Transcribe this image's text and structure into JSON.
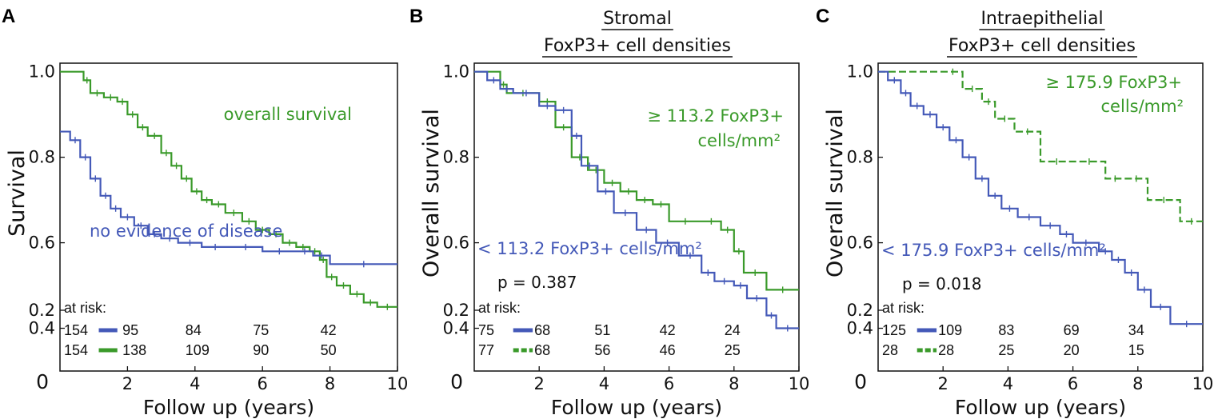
{
  "colors": {
    "blue": "#4459b8",
    "green": "#3a9a2a"
  },
  "chart_data": [
    {
      "type": "line",
      "panel_label": "A",
      "header": [],
      "ylabel": "Survival",
      "xlabel": "Follow up (years)",
      "y_origin_label": "0",
      "xlim": [
        0,
        10
      ],
      "ylim": [
        0.3,
        1.02
      ],
      "y_ticks": [
        "0.2",
        "0.4",
        "0.6",
        "0.8",
        "1.0"
      ],
      "x_ticks": [
        "2",
        "4",
        "6",
        "8",
        "10"
      ],
      "series": [
        {
          "name": "overall survival",
          "color": "green",
          "dashed": false,
          "x": [
            0,
            0.7,
            0.9,
            1.3,
            1.7,
            2.0,
            2.3,
            2.6,
            3.0,
            3.3,
            3.6,
            3.9,
            4.2,
            4.5,
            4.9,
            5.4,
            5.8,
            6.2,
            6.6,
            7.0,
            7.4,
            7.7,
            7.9,
            8.2,
            8.6,
            9.0,
            9.4,
            10
          ],
          "y": [
            1.0,
            0.98,
            0.95,
            0.94,
            0.93,
            0.9,
            0.87,
            0.85,
            0.81,
            0.78,
            0.75,
            0.72,
            0.7,
            0.69,
            0.67,
            0.65,
            0.63,
            0.62,
            0.6,
            0.59,
            0.58,
            0.56,
            0.52,
            0.5,
            0.48,
            0.46,
            0.45,
            0.45
          ]
        },
        {
          "name": "no evidence of disease",
          "color": "blue",
          "dashed": false,
          "x": [
            0,
            0.3,
            0.6,
            0.9,
            1.2,
            1.5,
            1.8,
            2.2,
            2.6,
            3.0,
            3.5,
            4.2,
            5.0,
            6.0,
            7.0,
            7.5,
            8.0,
            10
          ],
          "y": [
            0.86,
            0.84,
            0.8,
            0.75,
            0.71,
            0.68,
            0.66,
            0.64,
            0.62,
            0.61,
            0.6,
            0.59,
            0.59,
            0.58,
            0.58,
            0.57,
            0.55,
            0.55
          ]
        }
      ],
      "annotations": [
        {
          "text": "overall survival",
          "color": "green"
        },
        {
          "text": "no evidence of disease",
          "color": "blue"
        }
      ],
      "p_value": "",
      "at_risk_label": "at risk:",
      "at_risk": [
        {
          "color": "blue",
          "dashed": false,
          "n0": "154",
          "values": [
            "95",
            "84",
            "75",
            "42"
          ]
        },
        {
          "color": "green",
          "dashed": false,
          "n0": "154",
          "values": [
            "138",
            "109",
            "90",
            "50"
          ]
        }
      ]
    },
    {
      "type": "line",
      "panel_label": "B",
      "header": [
        "Stromal",
        "FoxP3+ cell densities"
      ],
      "ylabel": "Overall survival",
      "xlabel": "Follow up (years)",
      "y_origin_label": "0",
      "xlim": [
        0,
        10
      ],
      "ylim": [
        0.3,
        1.02
      ],
      "y_ticks": [
        "0.2",
        "0.4",
        "0.6",
        "0.8",
        "1.0"
      ],
      "x_ticks": [
        "2",
        "4",
        "6",
        "8",
        "10"
      ],
      "series": [
        {
          "name": "≥ 113.2 FoxP3+ cells/mm²",
          "color": "green",
          "dashed": false,
          "x": [
            0,
            0.8,
            1.0,
            2.0,
            2.5,
            3.0,
            3.5,
            4.0,
            4.5,
            5.0,
            5.5,
            6.0,
            7.0,
            7.6,
            8.0,
            8.3,
            9.0,
            10
          ],
          "y": [
            1.0,
            0.97,
            0.95,
            0.93,
            0.87,
            0.8,
            0.77,
            0.74,
            0.72,
            0.7,
            0.69,
            0.65,
            0.65,
            0.63,
            0.58,
            0.53,
            0.49,
            0.49
          ]
        },
        {
          "name": "< 113.2 FoxP3+ cells/mm²",
          "color": "blue",
          "dashed": false,
          "x": [
            0,
            0.4,
            0.8,
            1.2,
            2.0,
            2.5,
            3.0,
            3.3,
            3.8,
            4.3,
            5.0,
            5.6,
            6.3,
            7.0,
            7.4,
            8.0,
            8.4,
            9.0,
            9.3,
            10
          ],
          "y": [
            1.0,
            0.98,
            0.96,
            0.95,
            0.92,
            0.91,
            0.85,
            0.78,
            0.72,
            0.67,
            0.63,
            0.6,
            0.57,
            0.53,
            0.51,
            0.5,
            0.47,
            0.43,
            0.4,
            0.4
          ]
        }
      ],
      "annotations": [
        {
          "text": "≥ 113.2 FoxP3+",
          "color": "green"
        },
        {
          "text": "cells/mm²",
          "color": "green"
        },
        {
          "text": "< 113.2 FoxP3+ cells/mm²",
          "color": "blue"
        }
      ],
      "p_value": "p = 0.387",
      "at_risk_label": "at risk:",
      "at_risk": [
        {
          "color": "blue",
          "dashed": false,
          "n0": "75",
          "values": [
            "68",
            "51",
            "42",
            "24"
          ]
        },
        {
          "color": "green",
          "dashed": true,
          "n0": "77",
          "values": [
            "68",
            "56",
            "46",
            "25"
          ]
        }
      ]
    },
    {
      "type": "line",
      "panel_label": "C",
      "header": [
        "Intraepithelial",
        "FoxP3+ cell densities"
      ],
      "ylabel": "Overall survival",
      "xlabel": "Follow up (years)",
      "y_origin_label": "0",
      "xlim": [
        0,
        10
      ],
      "ylim": [
        0.3,
        1.02
      ],
      "y_ticks": [
        "0.2",
        "0.4",
        "0.6",
        "0.8",
        "1.0"
      ],
      "x_ticks": [
        "2",
        "4",
        "6",
        "8",
        "10"
      ],
      "series": [
        {
          "name": "≥ 175.9 FoxP3+ cells/mm²",
          "color": "green",
          "dashed": true,
          "x": [
            0,
            2.0,
            2.6,
            3.2,
            3.6,
            4.2,
            5.0,
            6.0,
            7.0,
            7.6,
            8.3,
            9.3,
            10
          ],
          "y": [
            1.0,
            1.0,
            0.96,
            0.93,
            0.89,
            0.86,
            0.79,
            0.79,
            0.75,
            0.75,
            0.7,
            0.65,
            0.65
          ]
        },
        {
          "name": "< 175.9 FoxP3+ cells/mm²",
          "color": "blue",
          "dashed": false,
          "x": [
            0,
            0.3,
            0.7,
            1.0,
            1.4,
            1.8,
            2.2,
            2.6,
            3.0,
            3.4,
            3.8,
            4.3,
            5.0,
            5.6,
            6.0,
            6.8,
            7.2,
            7.6,
            8.0,
            8.4,
            9.0,
            10
          ],
          "y": [
            1.0,
            0.98,
            0.95,
            0.92,
            0.9,
            0.87,
            0.84,
            0.8,
            0.75,
            0.71,
            0.68,
            0.66,
            0.64,
            0.62,
            0.6,
            0.58,
            0.56,
            0.53,
            0.49,
            0.45,
            0.41,
            0.41
          ]
        }
      ],
      "annotations": [
        {
          "text": "≥ 175.9 FoxP3+",
          "color": "green"
        },
        {
          "text": "cells/mm²",
          "color": "green"
        },
        {
          "text": "< 175.9 FoxP3+ cells/mm²",
          "color": "blue"
        }
      ],
      "p_value": "p = 0.018",
      "at_risk_label": "at risk:",
      "at_risk": [
        {
          "color": "blue",
          "dashed": false,
          "n0": "125",
          "values": [
            "109",
            "83",
            "69",
            "34"
          ]
        },
        {
          "color": "green",
          "dashed": true,
          "n0": "28",
          "values": [
            "28",
            "25",
            "20",
            "15"
          ]
        }
      ]
    }
  ]
}
